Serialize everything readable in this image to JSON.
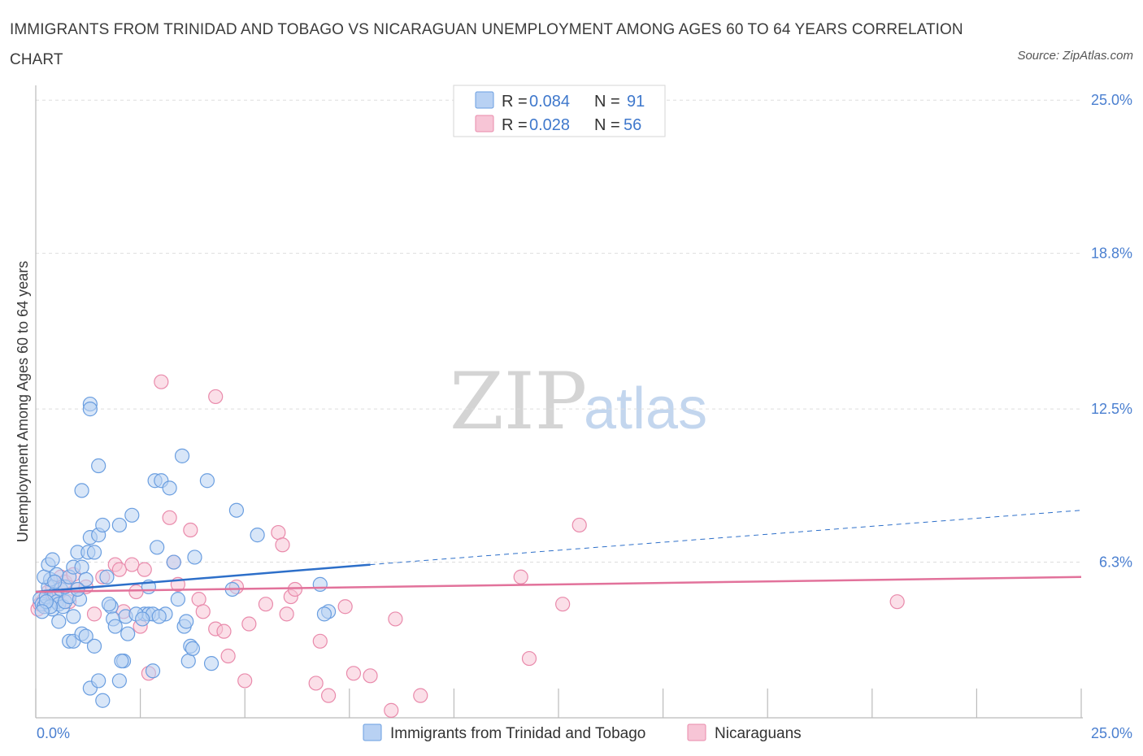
{
  "title": "IMMIGRANTS FROM TRINIDAD AND TOBAGO VS NICARAGUAN UNEMPLOYMENT AMONG AGES 60 TO 64 YEARS CORRELATION CHART",
  "source": "Source: ZipAtlas.com",
  "watermark": {
    "zip": "ZIP",
    "atlas": "atlas"
  },
  "colors": {
    "blue_fill": "#b8d1f3",
    "blue_stroke": "#6a9ee0",
    "blue_line": "#2d6fc9",
    "pink_fill": "#f7c5d6",
    "pink_stroke": "#e98aab",
    "pink_line": "#e2729b",
    "tick_text": "#4a7fd0",
    "grid": "#dddddd"
  },
  "legend": {
    "r_label": "R =",
    "n_label": "N =",
    "rows": [
      {
        "r": "0.084",
        "n": "91"
      },
      {
        "r": "0.028",
        "n": "56"
      }
    ]
  },
  "chart_data": {
    "type": "scatter",
    "title": "IMMIGRANTS FROM TRINIDAD AND TOBAGO VS NICARAGUAN UNEMPLOYMENT AMONG AGES 60 TO 64 YEARS CORRELATION CHART",
    "xlabel": "",
    "ylabel": "Unemployment Among Ages 60 to 64 years",
    "xlim": [
      0,
      25
    ],
    "ylim": [
      0,
      25.6
    ],
    "x_tick_labels": [
      "0.0%",
      "25.0%"
    ],
    "y_ticks": [
      6.3,
      12.5,
      18.8,
      25.0
    ],
    "y_tick_labels": [
      "6.3%",
      "12.5%",
      "18.8%",
      "25.0%"
    ],
    "grid": true,
    "legend_position": "top-center",
    "series": [
      {
        "name": "Immigrants from Trinidad and Tobago",
        "r": 0.084,
        "n": 91,
        "trend": {
          "x": [
            0,
            8
          ],
          "y": [
            5.1,
            6.2
          ],
          "dashed_extension_to": [
            25,
            8.4
          ]
        },
        "points": [
          [
            0.1,
            4.8
          ],
          [
            0.15,
            4.6
          ],
          [
            0.2,
            4.5
          ],
          [
            0.25,
            4.9
          ],
          [
            0.3,
            5.3
          ],
          [
            0.35,
            5.6
          ],
          [
            0.4,
            4.4
          ],
          [
            0.45,
            5.0
          ],
          [
            0.5,
            4.7
          ],
          [
            0.55,
            4.6
          ],
          [
            0.2,
            5.7
          ],
          [
            0.3,
            6.2
          ],
          [
            0.4,
            6.4
          ],
          [
            0.5,
            5.8
          ],
          [
            0.6,
            5.2
          ],
          [
            0.65,
            4.5
          ],
          [
            0.7,
            4.7
          ],
          [
            0.8,
            4.9
          ],
          [
            0.9,
            4.1
          ],
          [
            0.55,
            3.9
          ],
          [
            0.7,
            5.3
          ],
          [
            0.8,
            5.7
          ],
          [
            0.9,
            6.1
          ],
          [
            1.0,
            6.7
          ],
          [
            1.05,
            4.8
          ],
          [
            1.1,
            6.1
          ],
          [
            1.2,
            5.6
          ],
          [
            1.25,
            6.7
          ],
          [
            1.3,
            7.3
          ],
          [
            1.0,
            5.2
          ],
          [
            0.8,
            3.1
          ],
          [
            0.9,
            3.1
          ],
          [
            1.1,
            3.4
          ],
          [
            1.2,
            3.3
          ],
          [
            1.4,
            2.9
          ],
          [
            1.3,
            1.2
          ],
          [
            1.5,
            1.5
          ],
          [
            1.6,
            0.7
          ],
          [
            1.4,
            6.7
          ],
          [
            1.5,
            7.4
          ],
          [
            1.6,
            7.8
          ],
          [
            1.7,
            5.7
          ],
          [
            1.8,
            4.5
          ],
          [
            1.85,
            4.0
          ],
          [
            1.9,
            3.7
          ],
          [
            2.0,
            1.5
          ],
          [
            2.1,
            2.3
          ],
          [
            2.05,
            2.3
          ],
          [
            2.2,
            3.4
          ],
          [
            2.15,
            4.1
          ],
          [
            1.3,
            12.7
          ],
          [
            1.3,
            12.5
          ],
          [
            1.5,
            10.2
          ],
          [
            1.1,
            9.2
          ],
          [
            2.3,
            8.2
          ],
          [
            2.0,
            7.8
          ],
          [
            2.7,
            5.3
          ],
          [
            2.6,
            4.2
          ],
          [
            2.8,
            1.9
          ],
          [
            2.7,
            4.2
          ],
          [
            2.8,
            4.2
          ],
          [
            2.9,
            6.9
          ],
          [
            2.85,
            9.6
          ],
          [
            3.0,
            9.6
          ],
          [
            3.1,
            4.2
          ],
          [
            3.2,
            9.3
          ],
          [
            3.3,
            6.3
          ],
          [
            3.4,
            4.8
          ],
          [
            3.5,
            10.6
          ],
          [
            3.55,
            3.7
          ],
          [
            3.6,
            3.9
          ],
          [
            3.7,
            2.9
          ],
          [
            3.65,
            2.3
          ],
          [
            3.8,
            6.5
          ],
          [
            3.75,
            2.8
          ],
          [
            4.1,
            9.6
          ],
          [
            4.2,
            2.2
          ],
          [
            4.7,
            5.2
          ],
          [
            4.8,
            8.4
          ],
          [
            5.3,
            7.4
          ],
          [
            2.95,
            4.1
          ],
          [
            2.4,
            4.2
          ],
          [
            2.55,
            4.0
          ],
          [
            1.75,
            4.6
          ],
          [
            0.35,
            4.5
          ],
          [
            0.45,
            5.5
          ],
          [
            0.25,
            4.7
          ],
          [
            0.15,
            4.3
          ],
          [
            6.8,
            5.4
          ],
          [
            7.0,
            4.3
          ],
          [
            6.9,
            4.2
          ]
        ]
      },
      {
        "name": "Nicaraguans",
        "r": 0.028,
        "n": 56,
        "trend": {
          "x": [
            0,
            25
          ],
          "y": [
            5.1,
            5.7
          ]
        },
        "points": [
          [
            0.05,
            4.4
          ],
          [
            0.1,
            4.6
          ],
          [
            0.2,
            4.8
          ],
          [
            0.3,
            5.1
          ],
          [
            0.4,
            5.3
          ],
          [
            0.5,
            4.9
          ],
          [
            0.6,
            5.7
          ],
          [
            0.7,
            5.5
          ],
          [
            0.8,
            4.7
          ],
          [
            0.9,
            5.8
          ],
          [
            1.0,
            5.2
          ],
          [
            1.2,
            5.3
          ],
          [
            1.4,
            4.2
          ],
          [
            1.6,
            5.7
          ],
          [
            1.9,
            6.2
          ],
          [
            2.0,
            6.0
          ],
          [
            2.1,
            4.3
          ],
          [
            2.3,
            6.2
          ],
          [
            2.4,
            5.1
          ],
          [
            2.5,
            3.7
          ],
          [
            2.6,
            6.0
          ],
          [
            2.7,
            1.8
          ],
          [
            3.0,
            13.6
          ],
          [
            3.2,
            8.1
          ],
          [
            3.3,
            6.3
          ],
          [
            3.4,
            5.4
          ],
          [
            3.7,
            7.6
          ],
          [
            3.9,
            4.8
          ],
          [
            4.0,
            4.3
          ],
          [
            4.3,
            13.0
          ],
          [
            4.3,
            3.6
          ],
          [
            4.5,
            3.5
          ],
          [
            4.6,
            2.5
          ],
          [
            4.8,
            5.3
          ],
          [
            5.0,
            1.5
          ],
          [
            5.1,
            3.8
          ],
          [
            5.5,
            4.6
          ],
          [
            5.8,
            7.5
          ],
          [
            5.9,
            7.0
          ],
          [
            6.0,
            4.2
          ],
          [
            6.1,
            4.9
          ],
          [
            6.2,
            5.2
          ],
          [
            6.7,
            1.4
          ],
          [
            6.8,
            3.1
          ],
          [
            7.0,
            0.9
          ],
          [
            7.4,
            4.5
          ],
          [
            7.6,
            1.8
          ],
          [
            8.0,
            1.7
          ],
          [
            8.5,
            0.3
          ],
          [
            8.6,
            4.0
          ],
          [
            9.2,
            0.9
          ],
          [
            11.6,
            5.7
          ],
          [
            11.8,
            2.4
          ],
          [
            12.6,
            4.6
          ],
          [
            13.0,
            7.8
          ],
          [
            20.6,
            4.7
          ]
        ]
      }
    ]
  },
  "bottom_legend": [
    {
      "label": "Immigrants from Trinidad and Tobago"
    },
    {
      "label": "Nicaraguans"
    }
  ]
}
